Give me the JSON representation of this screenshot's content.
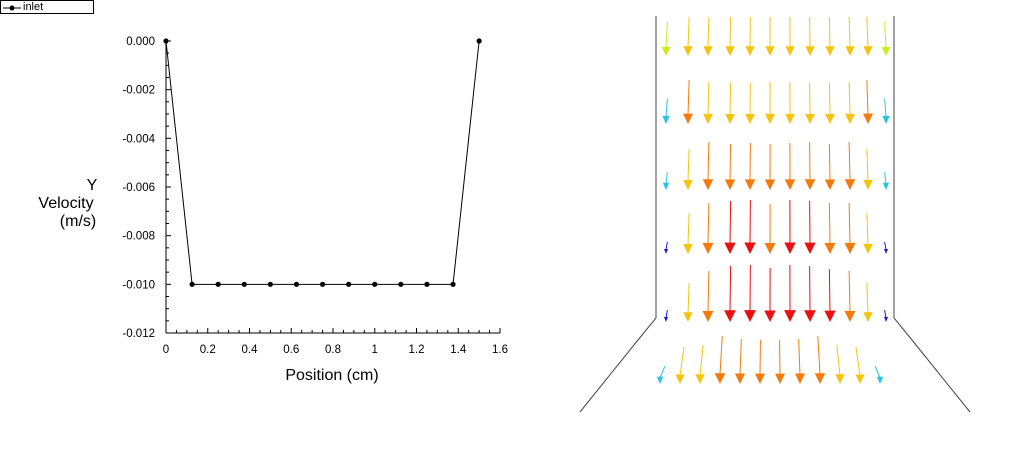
{
  "chart_data": {
    "type": "line",
    "title": "",
    "legend": {
      "entries": [
        "inlet"
      ],
      "placement": "top-left"
    },
    "xlabel": "Position (cm)",
    "ylabel_lines": [
      "Y",
      "Velocity",
      "(m/s)"
    ],
    "xlim": [
      0,
      1.6
    ],
    "ylim": [
      -0.012,
      0.0
    ],
    "x_ticks": [
      "0",
      "0.2",
      "0.4",
      "0.6",
      "0.8",
      "1",
      "1.2",
      "1.4",
      "1.6"
    ],
    "x_tick_values": [
      0,
      0.2,
      0.4,
      0.6,
      0.8,
      1.0,
      1.2,
      1.4,
      1.6
    ],
    "y_ticks": [
      "0.000",
      "-0.002",
      "-0.004",
      "-0.006",
      "-0.008",
      "-0.010",
      "-0.012"
    ],
    "y_tick_values": [
      0.0,
      -0.002,
      -0.004,
      -0.006,
      -0.008,
      -0.01,
      -0.012
    ],
    "grid": false,
    "series": [
      {
        "name": "inlet",
        "x": [
          0,
          0.125,
          0.25,
          0.375,
          0.5,
          0.625,
          0.75,
          0.875,
          1.0,
          1.125,
          1.25,
          1.375,
          1.5
        ],
        "y": [
          0.0,
          -0.01,
          -0.01,
          -0.01,
          -0.01,
          -0.01,
          -0.01,
          -0.01,
          -0.01,
          -0.01,
          -0.01,
          -0.01,
          0.0
        ]
      }
    ]
  },
  "vector_field": {
    "description_colors": {
      "low": "#1a1adb",
      "mid_low": "#29c4e0",
      "mid": "#c8ee1a",
      "mid_high": "#f5c40e",
      "high": "#f47a0c",
      "max": "#e81010"
    },
    "rows": [
      {
        "magnitudes": [
          0.52,
          0.62,
          0.62,
          0.62,
          0.62,
          0.62,
          0.62,
          0.62,
          0.62,
          0.62,
          0.62,
          0.52
        ]
      },
      {
        "magnitudes": [
          0.35,
          0.72,
          0.68,
          0.66,
          0.66,
          0.68,
          0.68,
          0.66,
          0.66,
          0.68,
          0.72,
          0.35
        ]
      },
      {
        "magnitudes": [
          0.2,
          0.66,
          0.8,
          0.76,
          0.78,
          0.76,
          0.78,
          0.8,
          0.76,
          0.8,
          0.66,
          0.2
        ]
      },
      {
        "magnitudes": [
          0.08,
          0.66,
          0.86,
          0.9,
          0.92,
          0.84,
          0.92,
          0.9,
          0.86,
          0.86,
          0.66,
          0.08
        ]
      },
      {
        "magnitudes": [
          0.08,
          0.62,
          0.86,
          0.96,
          0.98,
          0.92,
          0.98,
          0.96,
          0.9,
          0.86,
          0.62,
          0.08
        ]
      },
      {
        "magnitudes": [
          0.2,
          0.58,
          0.62,
          0.8,
          0.74,
          0.72,
          0.72,
          0.74,
          0.8,
          0.62,
          0.58,
          0.2
        ]
      }
    ]
  }
}
